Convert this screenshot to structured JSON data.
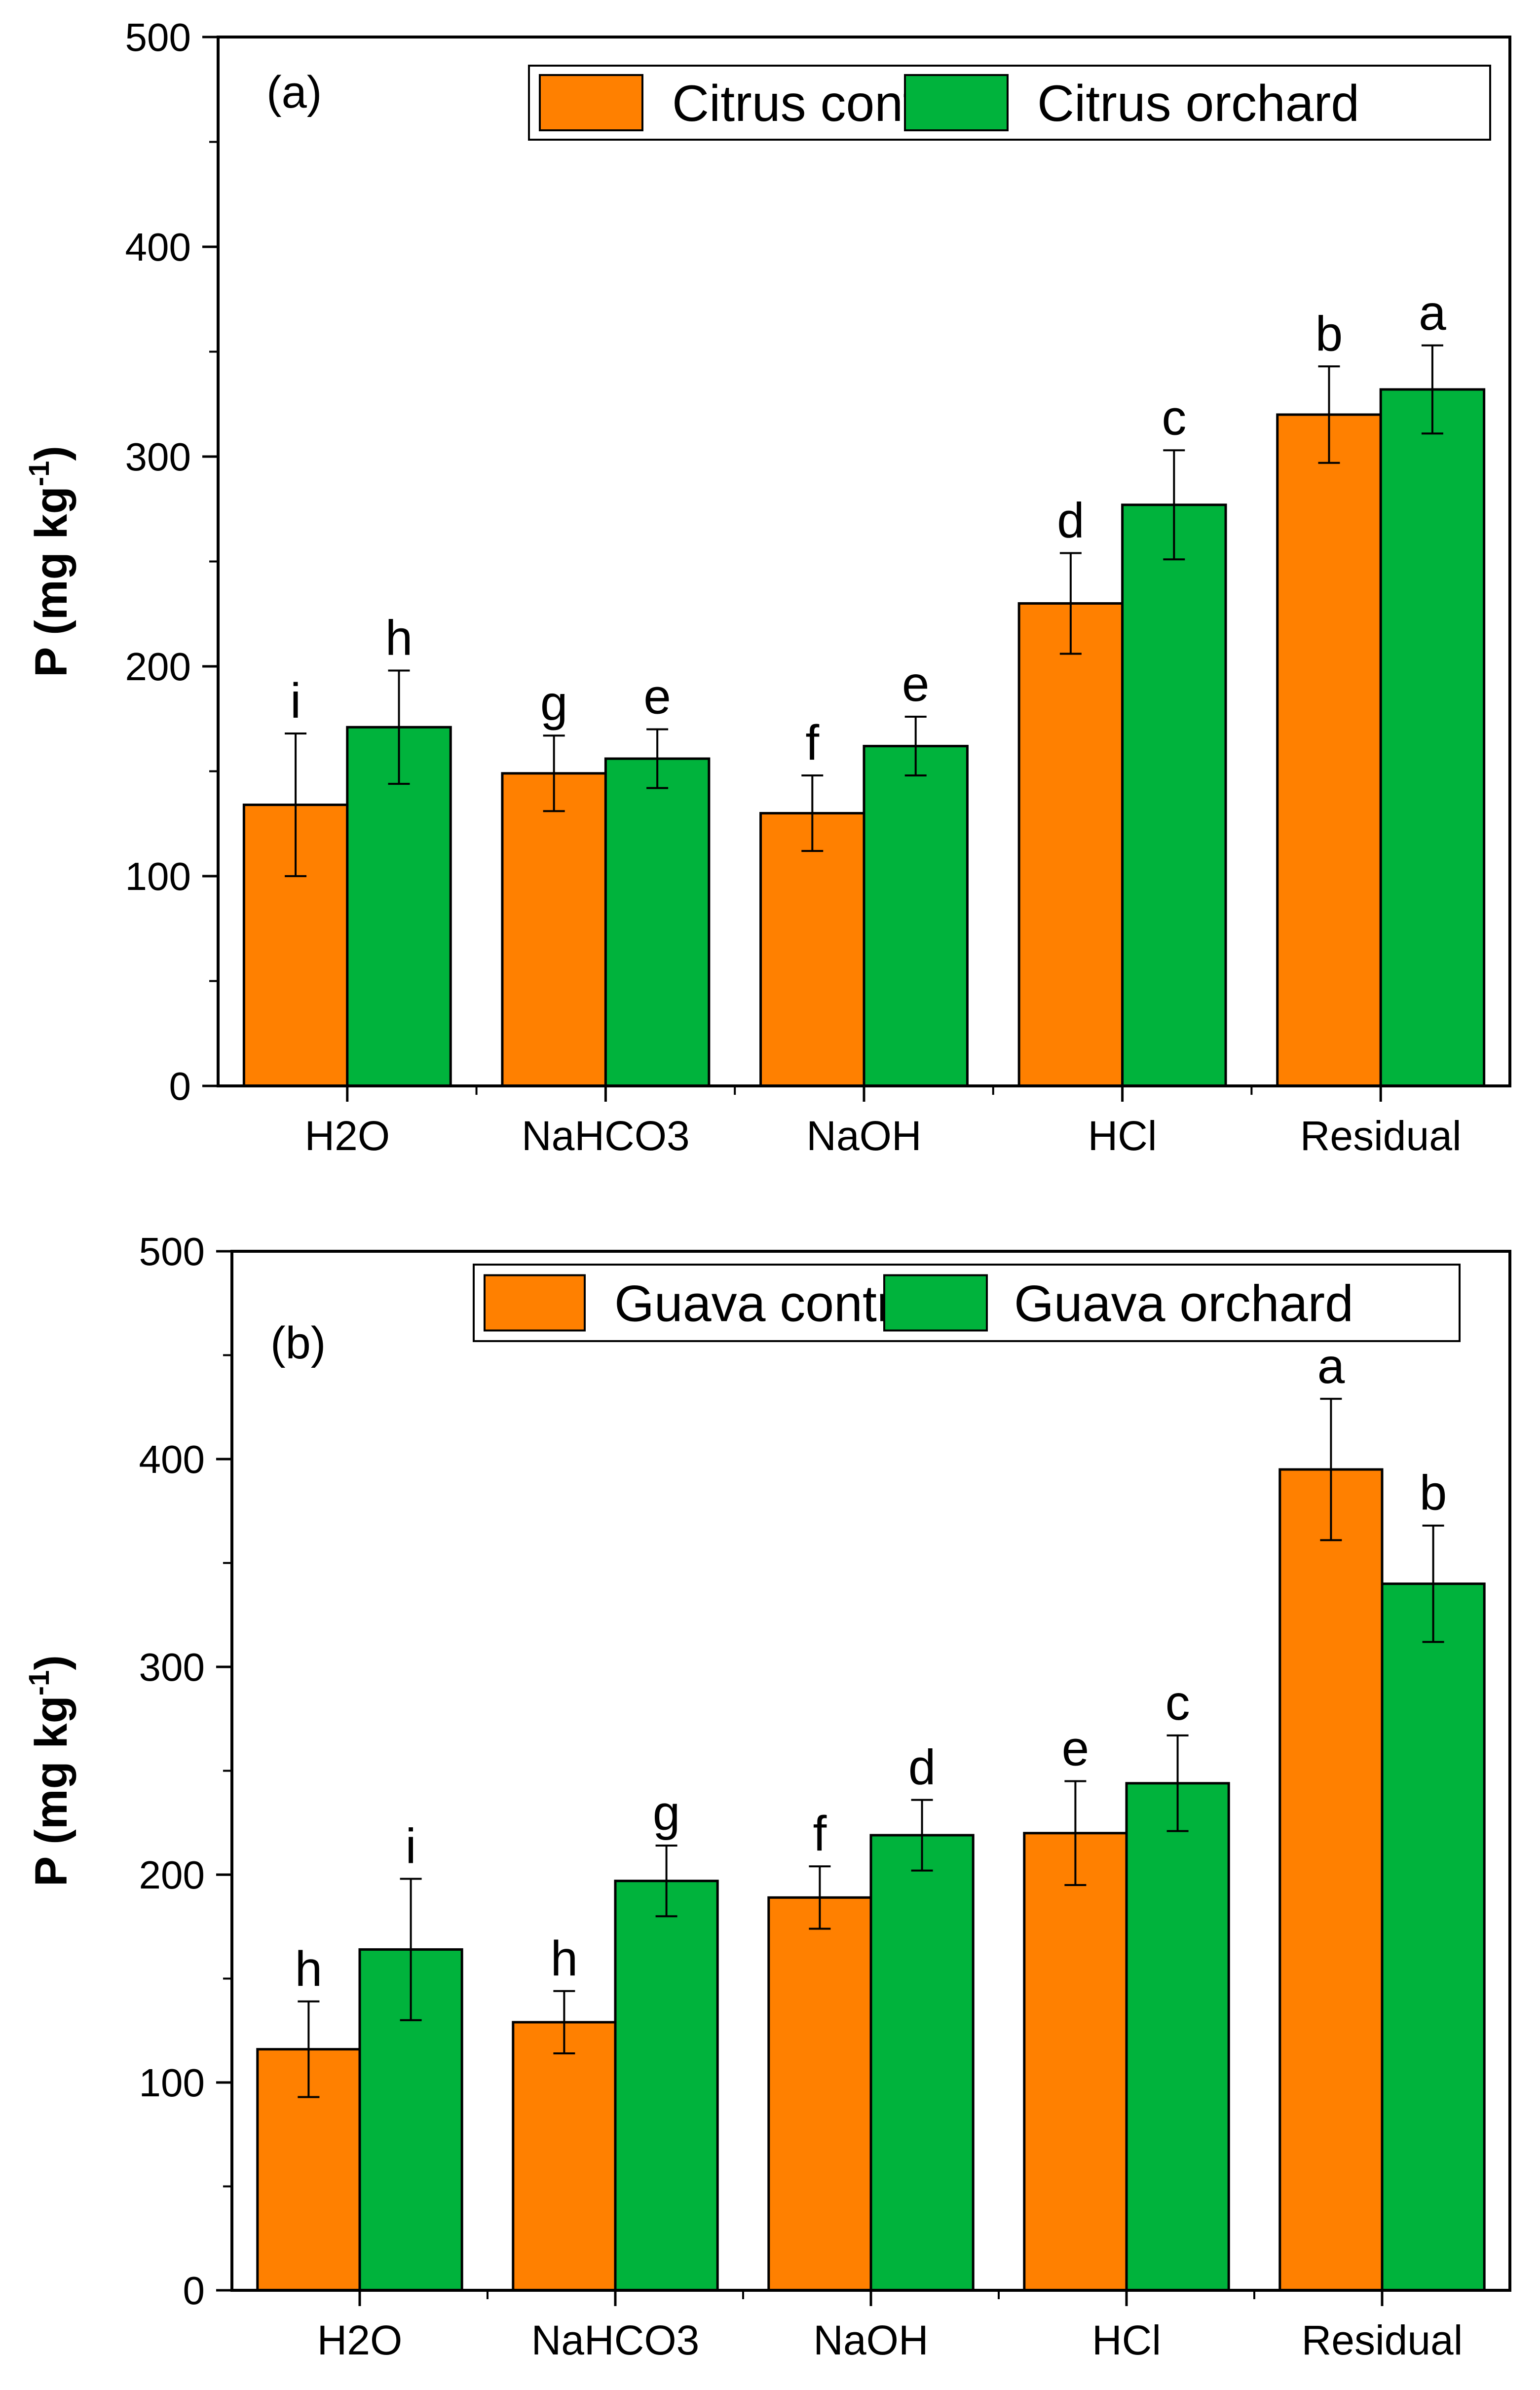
{
  "chart_data": [
    {
      "type": "bar",
      "panel_label": "(a)",
      "categories": [
        "H2O",
        "NaHCO3",
        "NaOH",
        "HCl",
        "Residual"
      ],
      "series": [
        {
          "name": "Citrus control",
          "color": "#ff8000",
          "values": [
            134,
            149,
            130,
            230,
            320
          ],
          "errors": [
            34,
            18,
            18,
            24,
            23
          ],
          "letters": [
            "i",
            "g",
            "f",
            "d",
            "b"
          ]
        },
        {
          "name": "Citrus orchard",
          "color": "#00b33c",
          "values": [
            171,
            156,
            162,
            277,
            332
          ],
          "errors": [
            27,
            14,
            14,
            26,
            21
          ],
          "letters": [
            "h",
            "e",
            "e",
            "c",
            "a"
          ]
        }
      ],
      "ylabel": "P (mg kg",
      "ylabel_sup": "-1",
      "ylabel_close": ")",
      "ylim": [
        0,
        500
      ],
      "yticks": [
        0,
        100,
        200,
        300,
        400,
        500
      ],
      "legend_position": "top-right"
    },
    {
      "type": "bar",
      "panel_label": "(b)",
      "categories": [
        "H2O",
        "NaHCO3",
        "NaOH",
        "HCl",
        "Residual"
      ],
      "series": [
        {
          "name": "Guava control",
          "color": "#ff8000",
          "values": [
            116,
            129,
            189,
            220,
            395
          ],
          "errors": [
            23,
            15,
            15,
            25,
            34
          ],
          "letters": [
            "h",
            "h",
            "f",
            "e",
            "a"
          ]
        },
        {
          "name": "Guava orchard",
          "color": "#00b33c",
          "values": [
            164,
            197,
            219,
            244,
            340
          ],
          "errors": [
            34,
            17,
            17,
            23,
            28
          ],
          "letters": [
            "i",
            "g",
            "d",
            "c",
            "b"
          ]
        }
      ],
      "ylabel": "P (mg kg",
      "ylabel_sup": "-1",
      "ylabel_close": ")",
      "ylim": [
        0,
        500
      ],
      "yticks": [
        0,
        100,
        200,
        300,
        400,
        500
      ],
      "legend_position": "top-right"
    }
  ]
}
